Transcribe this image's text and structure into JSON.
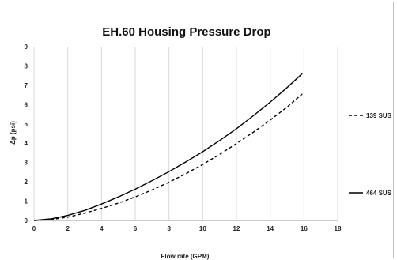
{
  "chart_data": {
    "type": "line",
    "title": "EH.60 Housing Pressure Drop",
    "xlabel": "Flow rate (GPM)",
    "ylabel": "Δp (psi)",
    "xlim": [
      0,
      18
    ],
    "ylim": [
      0,
      9
    ],
    "x_ticks": [
      "0",
      "2",
      "4",
      "6",
      "8",
      "10",
      "12",
      "14",
      "16",
      "18"
    ],
    "y_ticks": [
      "0",
      "1",
      "2",
      "3",
      "4",
      "5",
      "6",
      "7",
      "8",
      "9"
    ],
    "grid": "vertical",
    "legend_position": "right",
    "series": [
      {
        "name": "139 SUS",
        "style": "dashed",
        "color": "#000000",
        "x": [
          0,
          1,
          2,
          3,
          4,
          5,
          6,
          7,
          8,
          9,
          10,
          11,
          12,
          13,
          14,
          15,
          15.9
        ],
        "y": [
          0,
          0.05,
          0.17,
          0.38,
          0.62,
          0.9,
          1.22,
          1.58,
          1.98,
          2.42,
          2.9,
          3.42,
          3.98,
          4.57,
          5.2,
          5.87,
          6.55
        ]
      },
      {
        "name": "464 SUS",
        "style": "solid",
        "color": "#000000",
        "x": [
          0,
          1,
          2,
          3,
          4,
          5,
          6,
          7,
          8,
          9,
          10,
          11,
          12,
          13,
          14,
          15,
          15.9
        ],
        "y": [
          0,
          0.08,
          0.26,
          0.52,
          0.85,
          1.22,
          1.62,
          2.06,
          2.53,
          3.03,
          3.56,
          4.14,
          4.75,
          5.42,
          6.13,
          6.88,
          7.6
        ]
      }
    ]
  }
}
